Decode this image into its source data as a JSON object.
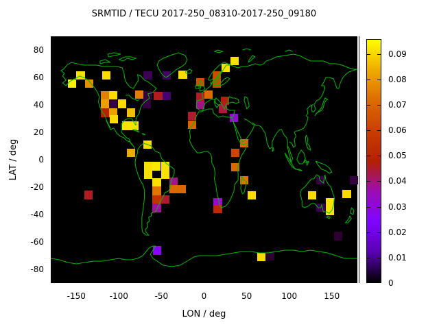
{
  "title": "SRMTID / TECU 2017-250_08310-2017-250_09180",
  "map": {
    "background_color": "#000000",
    "coastline_color": "#00bb00"
  },
  "chart_data": {
    "type": "heatmap",
    "title": "SRMTID / TECU 2017-250_08310-2017-250_09180",
    "xlabel": "LON / deg",
    "ylabel": "LAT / deg",
    "xlim": [
      -180,
      180
    ],
    "ylim": [
      -90,
      90
    ],
    "x_ticks": [
      -150,
      -100,
      -50,
      0,
      50,
      100,
      150
    ],
    "y_ticks": [
      80,
      60,
      40,
      20,
      0,
      -20,
      -40,
      -60,
      -80
    ],
    "grid": false,
    "background": "black world map with green coastlines",
    "cell_size_deg": [
      10,
      6.4
    ],
    "colorbar": {
      "min": 0,
      "max": 0.0958,
      "ticks": [
        0,
        0.01,
        0.02,
        0.03,
        0.04,
        0.05,
        0.06,
        0.07,
        0.08,
        0.09
      ],
      "palette": "gnuplot pm3d rgbformulae 7,5,15 (black-purple-magenta-red-orange-yellow)",
      "gradient_stops": [
        "#000000",
        "#5a00b4",
        "#8004ff",
        "#9c0db4",
        "#b42000",
        "#ca3e00",
        "#dd6c00",
        "#efab00",
        "#ffff00"
      ]
    },
    "point_fields": [
      "lon",
      "lat",
      "value_tecu"
    ],
    "points": [
      [
        -145,
        61.5,
        0.092
      ],
      [
        -155,
        55.5,
        0.094
      ],
      [
        -135,
        55.5,
        0.079
      ],
      [
        -115,
        61.5,
        0.091
      ],
      [
        -66,
        61.5,
        0.005
      ],
      [
        -44,
        61.5,
        0.006
      ],
      [
        -25,
        62,
        0.091
      ],
      [
        -116.5,
        47,
        0.076
      ],
      [
        -106.5,
        47,
        0.091
      ],
      [
        -76,
        47.5,
        0.076
      ],
      [
        -66,
        47,
        0.004
      ],
      [
        -54,
        46.5,
        0.046
      ],
      [
        -44,
        46.5,
        0.007
      ],
      [
        -116.5,
        40.6,
        0.082
      ],
      [
        -106.5,
        40.6,
        0.004
      ],
      [
        -96.3,
        40.6,
        0.091
      ],
      [
        -67,
        40.6,
        0.004
      ],
      [
        -116.5,
        34.4,
        0.049
      ],
      [
        -106.5,
        34.4,
        0.082
      ],
      [
        -86,
        34.4,
        0.087
      ],
      [
        -106,
        29.5,
        0.091
      ],
      [
        -91.5,
        24.7,
        0.092
      ],
      [
        -81.5,
        24.7,
        0.092
      ],
      [
        -66.3,
        11,
        0.091
      ],
      [
        -86,
        5,
        0.084
      ],
      [
        36,
        72,
        0.092
      ],
      [
        25.5,
        67,
        0.092
      ],
      [
        15,
        61.5,
        0.063
      ],
      [
        15,
        55.5,
        0.063
      ],
      [
        -4.5,
        56.5,
        0.064
      ],
      [
        -4.5,
        46,
        0.046
      ],
      [
        -4.5,
        40,
        0.039
      ],
      [
        5.5,
        47.5,
        0.071
      ],
      [
        24.3,
        43,
        0.047
      ],
      [
        22.3,
        37.3,
        0.044
      ],
      [
        35.3,
        30.5,
        0.033
      ],
      [
        -14,
        32,
        0.045
      ],
      [
        -14,
        25.5,
        0.07
      ],
      [
        47,
        12,
        0.071
      ],
      [
        36.4,
        5,
        0.062
      ],
      [
        36.4,
        -5.5,
        0.071
      ],
      [
        47,
        -15,
        0.073
      ],
      [
        56,
        -26,
        0.091
      ],
      [
        16,
        -31,
        0.034
      ],
      [
        16,
        -36,
        0.052
      ],
      [
        -65.8,
        -4.6,
        0.092
      ],
      [
        -55.8,
        -4.6,
        0.093
      ],
      [
        -45.7,
        -4.6,
        0.092
      ],
      [
        -65.8,
        -10.8,
        0.092
      ],
      [
        -45.7,
        -10.8,
        0.092
      ],
      [
        -55.5,
        -16.9,
        0.092
      ],
      [
        -36,
        -16,
        0.039
      ],
      [
        -55.5,
        -22.9,
        0.074
      ],
      [
        -36,
        -21.5,
        0.071
      ],
      [
        -26,
        -21.5,
        0.071
      ],
      [
        -55.5,
        -29,
        0.056
      ],
      [
        -45.5,
        -29,
        0.045
      ],
      [
        -55.5,
        -35.2,
        0.038
      ],
      [
        -135.5,
        -25.6,
        0.046
      ],
      [
        137,
        -15,
        0.004
      ],
      [
        176,
        -15,
        0.004
      ],
      [
        127,
        -26,
        0.091
      ],
      [
        167.5,
        -25,
        0.091
      ],
      [
        148,
        -31.3,
        0.092
      ],
      [
        148,
        -37.5,
        0.092
      ],
      [
        137,
        -35,
        0.005
      ],
      [
        157.3,
        -55.9,
        0.003
      ],
      [
        -55,
        -66.3,
        0.027
      ],
      [
        67,
        -71,
        0.091
      ],
      [
        78,
        -70.4,
        0.003
      ]
    ]
  }
}
